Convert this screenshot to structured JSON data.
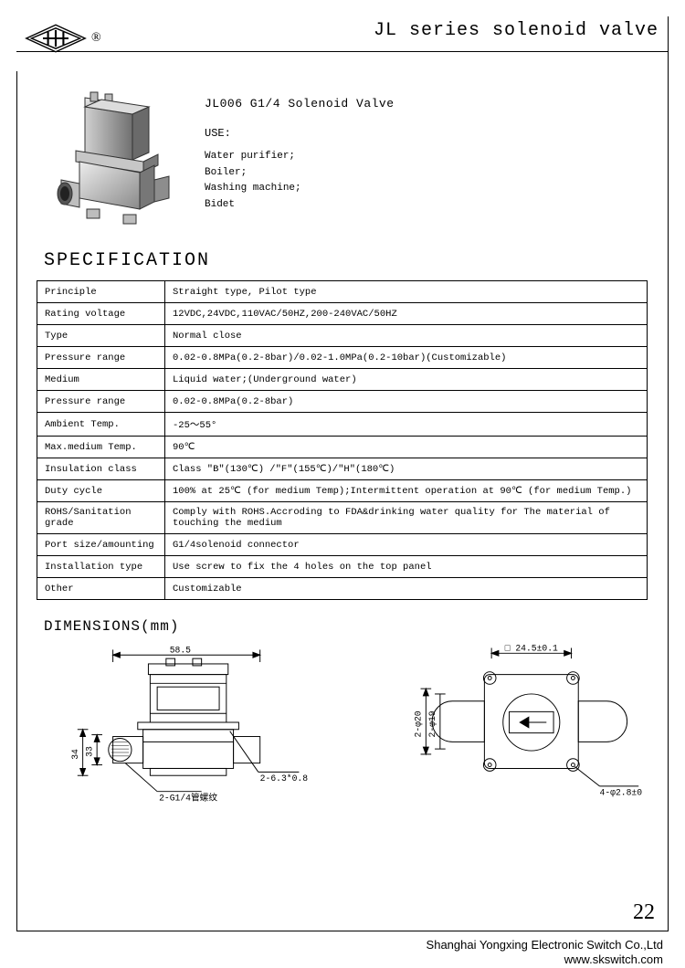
{
  "header": {
    "series_title": "JL series solenoid valve",
    "registered_mark": "®"
  },
  "product": {
    "title": "JL006 G1/4  Solenoid Valve",
    "use_label": "USE:",
    "uses": [
      "Water purifier;",
      "Boiler;",
      "Washing machine;",
      "Bidet"
    ]
  },
  "spec_heading": "SPECIFICATION",
  "spec_table": {
    "rows": [
      {
        "k": "Principle",
        "v": "Straight type, Pilot type"
      },
      {
        "k": "Rating  voltage",
        "v": "12VDC,24VDC,110VAC/50HZ,200-240VAC/50HZ"
      },
      {
        "k": "Type",
        "v": "Normal close"
      },
      {
        "k": "Pressure range",
        "v": "0.02-0.8MPa(0.2-8bar)/0.02-1.0MPa(0.2-10bar)(Customizable)"
      },
      {
        "k": "Medium",
        "v": "Liquid water;(Underground water)"
      },
      {
        "k": "Pressure range",
        "v": "0.02-0.8MPa(0.2-8bar)"
      },
      {
        "k": "Ambient Temp.",
        "v": "-25～55°"
      },
      {
        "k": "Max.medium Temp.",
        "v": "90℃"
      },
      {
        "k": "Insulation class",
        "v": "Class \"B\"(130℃) /\"F\"(155℃)/\"H\"(180℃)"
      },
      {
        "k": "Duty cycle",
        "v": "100% at 25℃ (for medium Temp);Intermittent operation at 90℃ (for medium Temp.)"
      },
      {
        "k": "ROHS/Sanitation grade",
        "v": "Comply with ROHS.Accroding to FDA&drinking water quality for The material of touching the medium"
      },
      {
        "k": "Port size/amounting",
        "v": "G1/4solenoid connector"
      },
      {
        "k": "Installation type",
        "v": "Use screw to fix the 4 holes on the top panel"
      },
      {
        "k": "Other",
        "v": "Customizable"
      }
    ]
  },
  "dimensions": {
    "heading": "DIMENSIONS(mm)",
    "front": {
      "width": "58.5",
      "overall_h": "34",
      "body_h": "33",
      "thread_label": "2-G1/4管螺纹",
      "tab_label": "2-6.3*0.8"
    },
    "top": {
      "square": "□ 24.5±0.1",
      "port_dia": "2-φ20",
      "inner_dia": "2-φ19",
      "hole_label": "4-φ2.8±0.1"
    }
  },
  "page_number": "22",
  "footer": {
    "company": "Shanghai Yongxing Electronic Switch Co.,Ltd",
    "website": "www.skswitch.com"
  },
  "colors": {
    "line": "#000000",
    "bg": "#ffffff",
    "shade": "#cfcfcf"
  }
}
